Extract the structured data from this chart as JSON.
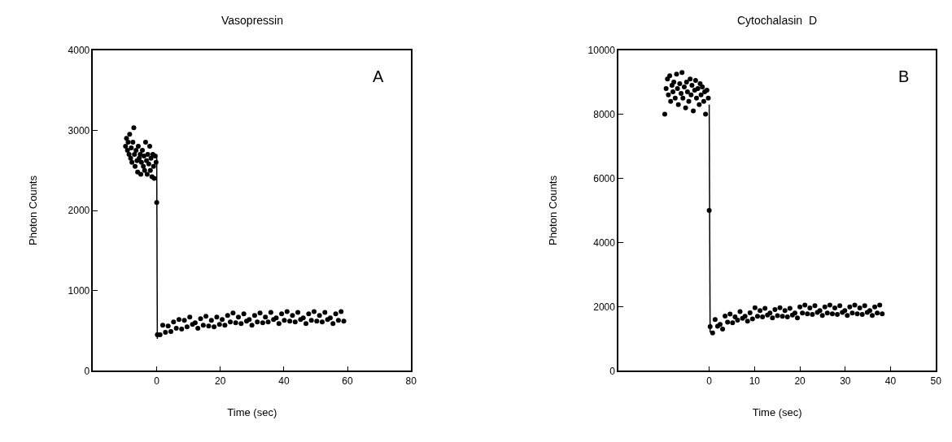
{
  "chart_data": [
    {
      "type": "scatter",
      "title": "Vasopressin",
      "xlabel": "Time (sec)",
      "ylabel": "Photon Counts",
      "annotations": [
        "A"
      ],
      "xlim": [
        -20,
        80
      ],
      "xticks": [
        0,
        20,
        40,
        60,
        80
      ],
      "ylim": [
        0,
        4000
      ],
      "yticks": [
        0,
        1000,
        2000,
        3000,
        4000
      ],
      "grid": false,
      "marker": "circle",
      "series": [
        {
          "color": "#000000",
          "x": [
            -9.8,
            -9.5,
            -9.2,
            -9,
            -8.7,
            -8.5,
            -8.2,
            -8,
            -7.8,
            -7.5,
            -7.2,
            -7,
            -6.8,
            -6.5,
            -6.2,
            -6,
            -5.8,
            -5.5,
            -5.2,
            -5,
            -4.8,
            -4.5,
            -4.2,
            -4,
            -3.8,
            -3.5,
            -3.2,
            -3,
            -2.8,
            -2.5,
            -2.2,
            -2,
            -1.8,
            -1.5,
            -1.2,
            -1,
            -0.8,
            -0.5,
            -0.2,
            0
          ],
          "values": [
            2800,
            2900,
            2750,
            2850,
            2700,
            2950,
            2650,
            2780,
            2600,
            2850,
            3030,
            2700,
            2550,
            2750,
            2620,
            2480,
            2800,
            2650,
            2700,
            2450,
            2600,
            2750,
            2550,
            2680,
            2500,
            2850,
            2620,
            2450,
            2700,
            2580,
            2800,
            2500,
            2650,
            2420,
            2700,
            2550,
            2400,
            2680,
            2600,
            2100
          ]
        },
        {
          "color": "#000000",
          "x": [
            0.2,
            1.05,
            1.9,
            2.75,
            3.6,
            4.45,
            5.3,
            6.15,
            7.0,
            7.85,
            8.7,
            9.55,
            10.4,
            11.25,
            12.1,
            12.95,
            13.8,
            14.65,
            15.5,
            16.35,
            17.2,
            18.05,
            18.9,
            19.75,
            20.6,
            21.45,
            22.3,
            23.15,
            24.0,
            24.85,
            25.7,
            26.55,
            27.4,
            28.25,
            29.1,
            29.95,
            30.8,
            31.65,
            32.5,
            33.35,
            34.2,
            35.05,
            35.9,
            36.75,
            37.6,
            38.45,
            39.3,
            40.15,
            41.0,
            41.85,
            42.7,
            43.55,
            44.4,
            45.25,
            46.1,
            46.95,
            47.8,
            48.65,
            49.5,
            50.35,
            51.2,
            52.05,
            52.9,
            53.75,
            54.6,
            55.45,
            56.3,
            57.15,
            58.0,
            58.85
          ],
          "values": [
            450,
            450,
            570,
            480,
            560,
            490,
            610,
            530,
            640,
            520,
            630,
            550,
            670,
            580,
            600,
            530,
            650,
            570,
            680,
            560,
            630,
            550,
            670,
            580,
            640,
            570,
            690,
            610,
            720,
            600,
            670,
            590,
            710,
            620,
            640,
            570,
            690,
            610,
            720,
            600,
            670,
            610,
            730,
            640,
            660,
            590,
            710,
            630,
            740,
            620,
            690,
            610,
            730,
            640,
            660,
            590,
            710,
            630,
            740,
            620,
            690,
            610,
            730,
            640,
            660,
            590,
            710,
            630,
            740,
            620
          ]
        },
        {
          "type": "line",
          "marker": "none",
          "color": "#000000",
          "x": [
            0,
            0.2
          ],
          "values": [
            2700,
            400
          ]
        }
      ]
    },
    {
      "type": "scatter",
      "title": "Cytochalasin  D",
      "xlabel": "Time (sec)",
      "ylabel": "Photon Counts",
      "annotations": [
        "B"
      ],
      "xlim": [
        -20,
        50
      ],
      "xticks": [
        0,
        10,
        20,
        30,
        40,
        50
      ],
      "ylim": [
        0,
        10000
      ],
      "yticks": [
        0,
        2000,
        4000,
        6000,
        8000,
        10000
      ],
      "grid": false,
      "marker": "circle",
      "series": [
        {
          "color": "#000000",
          "x": [
            -9.8,
            -9.5,
            -9.2,
            -9,
            -8.7,
            -8.5,
            -8.2,
            -8,
            -7.8,
            -7.5,
            -7.2,
            -7,
            -6.8,
            -6.5,
            -6.2,
            -6,
            -5.8,
            -5.5,
            -5.2,
            -5,
            -4.8,
            -4.5,
            -4.2,
            -4,
            -3.8,
            -3.5,
            -3.2,
            -3,
            -2.8,
            -2.5,
            -2.2,
            -2,
            -1.8,
            -1.5,
            -1.2,
            -1,
            -0.8,
            -0.5,
            -0.2,
            0
          ],
          "values": [
            8000,
            8800,
            9100,
            8600,
            9200,
            8400,
            8900,
            8700,
            9000,
            8500,
            9250,
            8800,
            8300,
            8950,
            8650,
            9300,
            8500,
            8850,
            8200,
            9000,
            8700,
            8400,
            9100,
            8600,
            8900,
            8100,
            8750,
            9050,
            8500,
            8800,
            8300,
            8950,
            8600,
            8850,
            8400,
            8700,
            8000,
            8750,
            8500,
            5000
          ]
        },
        {
          "color": "#000000",
          "x": [
            0.2,
            0.75,
            1.3,
            1.85,
            2.4,
            2.95,
            3.5,
            4.05,
            4.6,
            5.15,
            5.7,
            6.25,
            6.8,
            7.35,
            7.9,
            8.45,
            9.0,
            9.55,
            10.1,
            10.65,
            11.2,
            11.75,
            12.3,
            12.85,
            13.4,
            13.95,
            14.5,
            15.05,
            15.6,
            16.15,
            16.7,
            17.25,
            17.8,
            18.35,
            18.9,
            19.45,
            20.0,
            20.55,
            21.1,
            21.65,
            22.2,
            22.75,
            23.3,
            23.85,
            24.4,
            24.95,
            25.5,
            26.05,
            26.6,
            27.15,
            27.7,
            28.25,
            28.8,
            29.35,
            29.9,
            30.45,
            31.0,
            31.55,
            32.1,
            32.65,
            33.2,
            33.75,
            34.3,
            34.85,
            35.4,
            35.95,
            36.5,
            37.05,
            37.6,
            38.15
          ],
          "values": [
            1380,
            1180,
            1600,
            1390,
            1450,
            1300,
            1710,
            1520,
            1770,
            1500,
            1680,
            1580,
            1850,
            1640,
            1700,
            1550,
            1810,
            1620,
            1970,
            1700,
            1880,
            1680,
            1950,
            1740,
            1800,
            1650,
            1910,
            1720,
            1970,
            1700,
            1880,
            1680,
            1950,
            1740,
            1800,
            1650,
            1990,
            1800,
            2050,
            1780,
            1960,
            1760,
            2030,
            1820,
            1880,
            1730,
            1990,
            1800,
            2050,
            1780,
            1960,
            1760,
            2030,
            1820,
            1880,
            1730,
            1990,
            1800,
            2050,
            1780,
            1960,
            1760,
            2030,
            1820,
            1880,
            1730,
            1990,
            1800,
            2050,
            1780
          ]
        },
        {
          "type": "line",
          "marker": "none",
          "color": "#000000",
          "x": [
            0,
            0.2
          ],
          "values": [
            8300,
            1200
          ]
        }
      ]
    }
  ]
}
